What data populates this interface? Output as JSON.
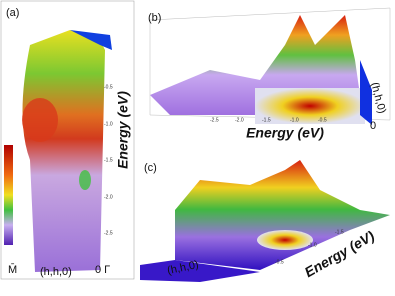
{
  "panels": [
    {
      "label": "(a)",
      "axis_title": "Energy (eV)",
      "ticks": [
        "-0.5",
        "-1.0",
        "-1.5",
        "-2.0",
        "-2.5"
      ],
      "left_label": "M̄",
      "bottom_label": "(h,h,0)",
      "right_label": "0 Γ"
    },
    {
      "label": "(b)",
      "axis_title": "Energy (eV)",
      "ticks": [
        "-2.5",
        "-2.0",
        "-1.5",
        "-1.0",
        "-0.5"
      ],
      "side_label": "(h,h,0)",
      "zero_label": "0"
    },
    {
      "label": "(c)",
      "axis_title": "Energy (eV)",
      "ticks": [
        "-0.5",
        "-1.0",
        "-1.5"
      ],
      "side_label": "(h,h,0)"
    }
  ]
}
